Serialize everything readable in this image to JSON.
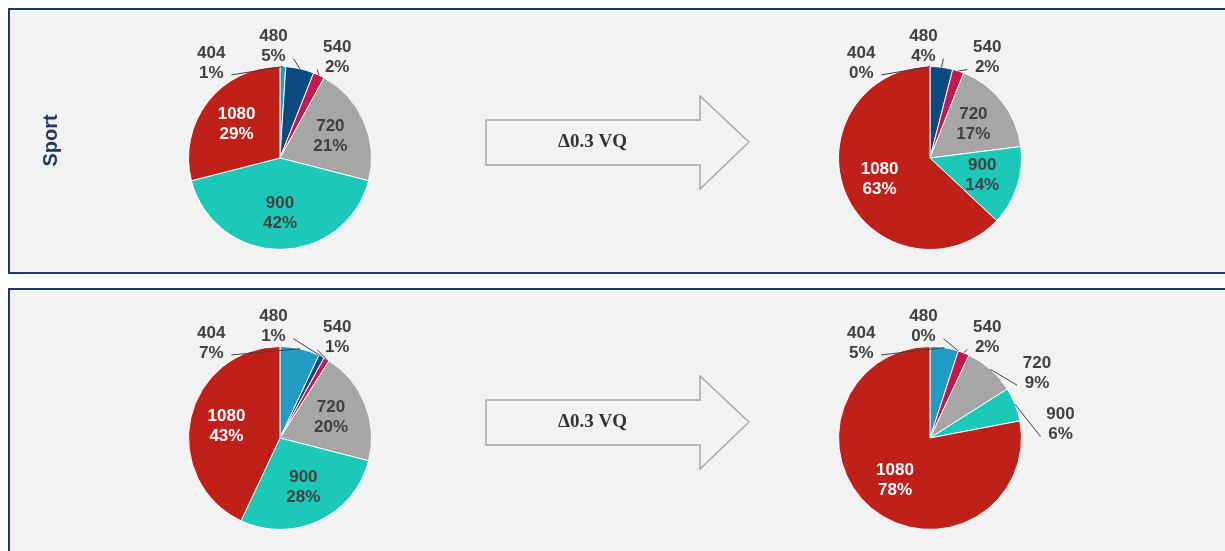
{
  "chart_data": [
    {
      "type": "pie",
      "title": "Sport",
      "categories": [
        "404",
        "480",
        "540",
        "720",
        "900",
        "1080"
      ],
      "values": [
        1,
        5,
        2,
        21,
        42,
        29
      ],
      "value_labels": [
        "1%",
        "5%",
        "2%",
        "21%",
        "42%",
        "29%"
      ],
      "colors": [
        "#1f9bc4",
        "#0b4a80",
        "#c8174a",
        "#a6a6a6",
        "#1cc8b8",
        "#c0201a"
      ],
      "annotations": [
        "Δ0.3 VQ"
      ]
    },
    {
      "type": "pie",
      "categories": [
        "404",
        "480",
        "540",
        "720",
        "900",
        "1080"
      ],
      "values": [
        0,
        4,
        2,
        17,
        14,
        63
      ],
      "value_labels": [
        "0%",
        "4%",
        "2%",
        "17%",
        "14%",
        "63%"
      ],
      "colors": [
        "#1f9bc4",
        "#0b4a80",
        "#c8174a",
        "#a6a6a6",
        "#1cc8b8",
        "#c0201a"
      ]
    },
    {
      "type": "pie",
      "categories": [
        "404",
        "480",
        "540",
        "720",
        "900",
        "1080"
      ],
      "values": [
        7,
        1,
        1,
        20,
        28,
        43
      ],
      "value_labels": [
        "7%",
        "1%",
        "1%",
        "20%",
        "28%",
        "43%"
      ],
      "colors": [
        "#1f9bc4",
        "#0b4a80",
        "#c8174a",
        "#a6a6a6",
        "#1cc8b8",
        "#c0201a"
      ],
      "annotations": [
        "Δ0.3 VQ"
      ]
    },
    {
      "type": "pie",
      "categories": [
        "404",
        "480",
        "540",
        "720",
        "900",
        "1080"
      ],
      "values": [
        5,
        0,
        2,
        9,
        6,
        78
      ],
      "value_labels": [
        "5%",
        "0%",
        "2%",
        "9%",
        "6%",
        "78%"
      ],
      "colors": [
        "#1f9bc4",
        "#0b4a80",
        "#c8174a",
        "#a6a6a6",
        "#1cc8b8",
        "#c0201a"
      ]
    }
  ]
}
